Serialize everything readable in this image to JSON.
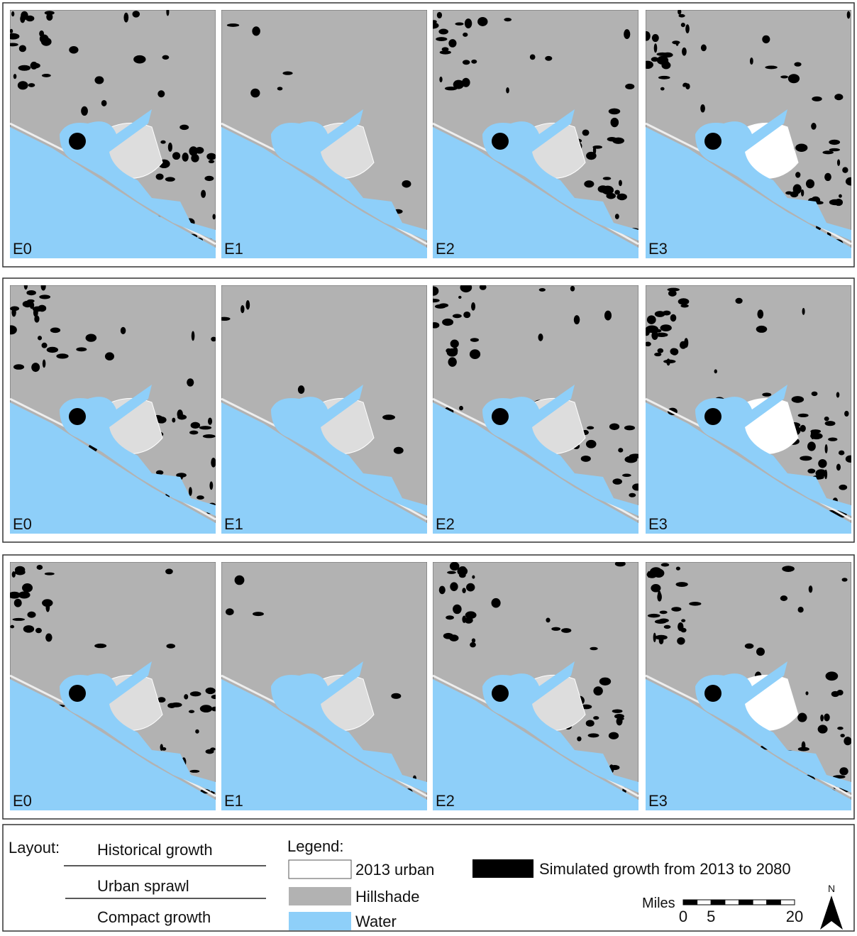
{
  "rows": [
    {
      "panels": [
        "E0",
        "E1",
        "E2",
        "E3"
      ]
    },
    {
      "panels": [
        "E0",
        "E1",
        "E2",
        "E3"
      ]
    },
    {
      "panels": [
        "E0",
        "E1",
        "E2",
        "E3"
      ]
    }
  ],
  "layout": {
    "label": "Layout:",
    "items": [
      "Historical growth",
      "Urban sprawl",
      "Compact growth"
    ]
  },
  "legend": {
    "label": "Legend:",
    "items": [
      {
        "label": "2013 urban",
        "color": "#ffffff"
      },
      {
        "label": "Hillshade",
        "color": "#b2b2b2"
      },
      {
        "label": "Water",
        "color": "#8ecff9"
      },
      {
        "label": "Simulated growth from 2013 to 2080",
        "color": "#000000"
      }
    ]
  },
  "scale_bar": {
    "unit": "Miles",
    "ticks": [
      0,
      5,
      20
    ]
  },
  "north": "N"
}
